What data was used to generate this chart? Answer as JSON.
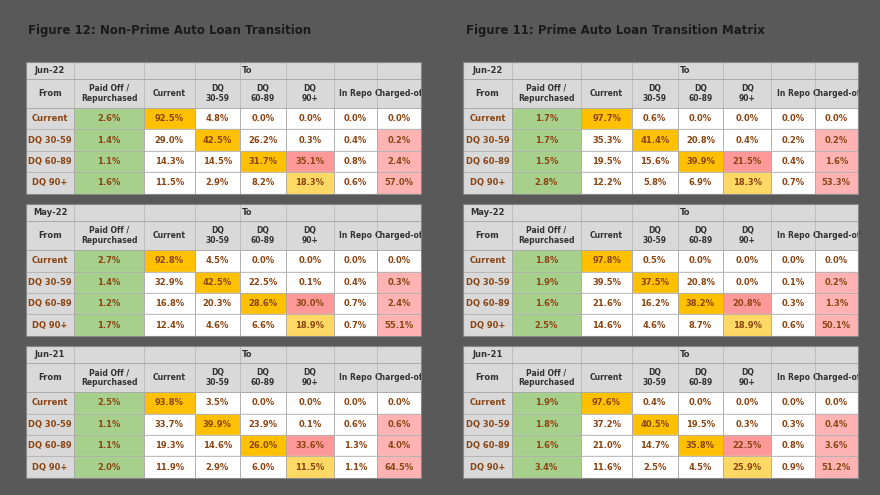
{
  "fig_left_title": "Figure 12: Non-Prime Auto Loan Transition",
  "fig_right_title": "Figure 11: Prime Auto Loan Transition Matrix",
  "col_headers_line1": [
    "Paid Off /",
    "Current",
    "DQ",
    "DQ",
    "DQ",
    "In Repo",
    "Charged-of"
  ],
  "col_headers_line2": [
    "Repurchased",
    "",
    "30-59",
    "60-89",
    "90+",
    "",
    ""
  ],
  "row_headers": [
    "Current",
    "DQ 30-59",
    "DQ 60-89",
    "DQ 90+"
  ],
  "period_headers": [
    "Jun-22",
    "May-22",
    "Jun-21"
  ],
  "left_tables": [
    [
      [
        "2.6%",
        "92.5%",
        "4.8%",
        "0.0%",
        "0.0%",
        "0.0%",
        "0.0%"
      ],
      [
        "1.4%",
        "29.0%",
        "42.5%",
        "26.2%",
        "0.3%",
        "0.4%",
        "0.2%"
      ],
      [
        "1.1%",
        "14.3%",
        "14.5%",
        "31.7%",
        "35.1%",
        "0.8%",
        "2.4%"
      ],
      [
        "1.6%",
        "11.5%",
        "2.9%",
        "8.2%",
        "18.3%",
        "0.6%",
        "57.0%"
      ]
    ],
    [
      [
        "2.7%",
        "92.8%",
        "4.5%",
        "0.0%",
        "0.0%",
        "0.0%",
        "0.0%"
      ],
      [
        "1.4%",
        "32.9%",
        "42.5%",
        "22.5%",
        "0.1%",
        "0.4%",
        "0.3%"
      ],
      [
        "1.2%",
        "16.8%",
        "20.3%",
        "28.6%",
        "30.0%",
        "0.7%",
        "2.4%"
      ],
      [
        "1.7%",
        "12.4%",
        "4.6%",
        "6.6%",
        "18.9%",
        "0.7%",
        "55.1%"
      ]
    ],
    [
      [
        "2.5%",
        "93.8%",
        "3.5%",
        "0.0%",
        "0.0%",
        "0.0%",
        "0.0%"
      ],
      [
        "1.1%",
        "33.7%",
        "39.9%",
        "23.9%",
        "0.1%",
        "0.6%",
        "0.6%"
      ],
      [
        "1.1%",
        "19.3%",
        "14.6%",
        "26.0%",
        "33.6%",
        "1.3%",
        "4.0%"
      ],
      [
        "2.0%",
        "11.9%",
        "2.9%",
        "6.0%",
        "11.5%",
        "1.1%",
        "64.5%"
      ]
    ]
  ],
  "right_tables": [
    [
      [
        "1.7%",
        "97.7%",
        "0.6%",
        "0.0%",
        "0.0%",
        "0.0%",
        "0.0%"
      ],
      [
        "1.7%",
        "35.3%",
        "41.4%",
        "20.8%",
        "0.4%",
        "0.2%",
        "0.2%"
      ],
      [
        "1.5%",
        "19.5%",
        "15.6%",
        "39.9%",
        "21.5%",
        "0.4%",
        "1.6%"
      ],
      [
        "2.8%",
        "12.2%",
        "5.8%",
        "6.9%",
        "18.3%",
        "0.7%",
        "53.3%"
      ]
    ],
    [
      [
        "1.8%",
        "97.8%",
        "0.5%",
        "0.0%",
        "0.0%",
        "0.0%",
        "0.0%"
      ],
      [
        "1.9%",
        "39.5%",
        "37.5%",
        "20.8%",
        "0.0%",
        "0.1%",
        "0.2%"
      ],
      [
        "1.6%",
        "21.6%",
        "16.2%",
        "38.2%",
        "20.8%",
        "0.3%",
        "1.3%"
      ],
      [
        "2.5%",
        "14.6%",
        "4.6%",
        "8.7%",
        "18.9%",
        "0.6%",
        "50.1%"
      ]
    ],
    [
      [
        "1.9%",
        "97.6%",
        "0.4%",
        "0.0%",
        "0.0%",
        "0.0%",
        "0.0%"
      ],
      [
        "1.8%",
        "37.2%",
        "40.5%",
        "19.5%",
        "0.3%",
        "0.3%",
        "0.4%"
      ],
      [
        "1.6%",
        "21.0%",
        "14.7%",
        "35.8%",
        "22.5%",
        "0.8%",
        "3.6%"
      ],
      [
        "3.4%",
        "11.6%",
        "2.5%",
        "4.5%",
        "25.9%",
        "0.9%",
        "51.2%"
      ]
    ]
  ],
  "bg_color": "#595959",
  "panel_bg": "#ffffff",
  "header_bg": "#d9d9d9",
  "green_cell": "#a8d08d",
  "yellow_cell": "#ffc000",
  "lightyellow_cell": "#ffd966",
  "pink_cell": "#ffb3b3",
  "salmon_cell": "#ff9999",
  "white_cell": "#ffffff",
  "text_brown": "#8b4513",
  "text_dark": "#1a1a1a",
  "text_header": "#333333"
}
